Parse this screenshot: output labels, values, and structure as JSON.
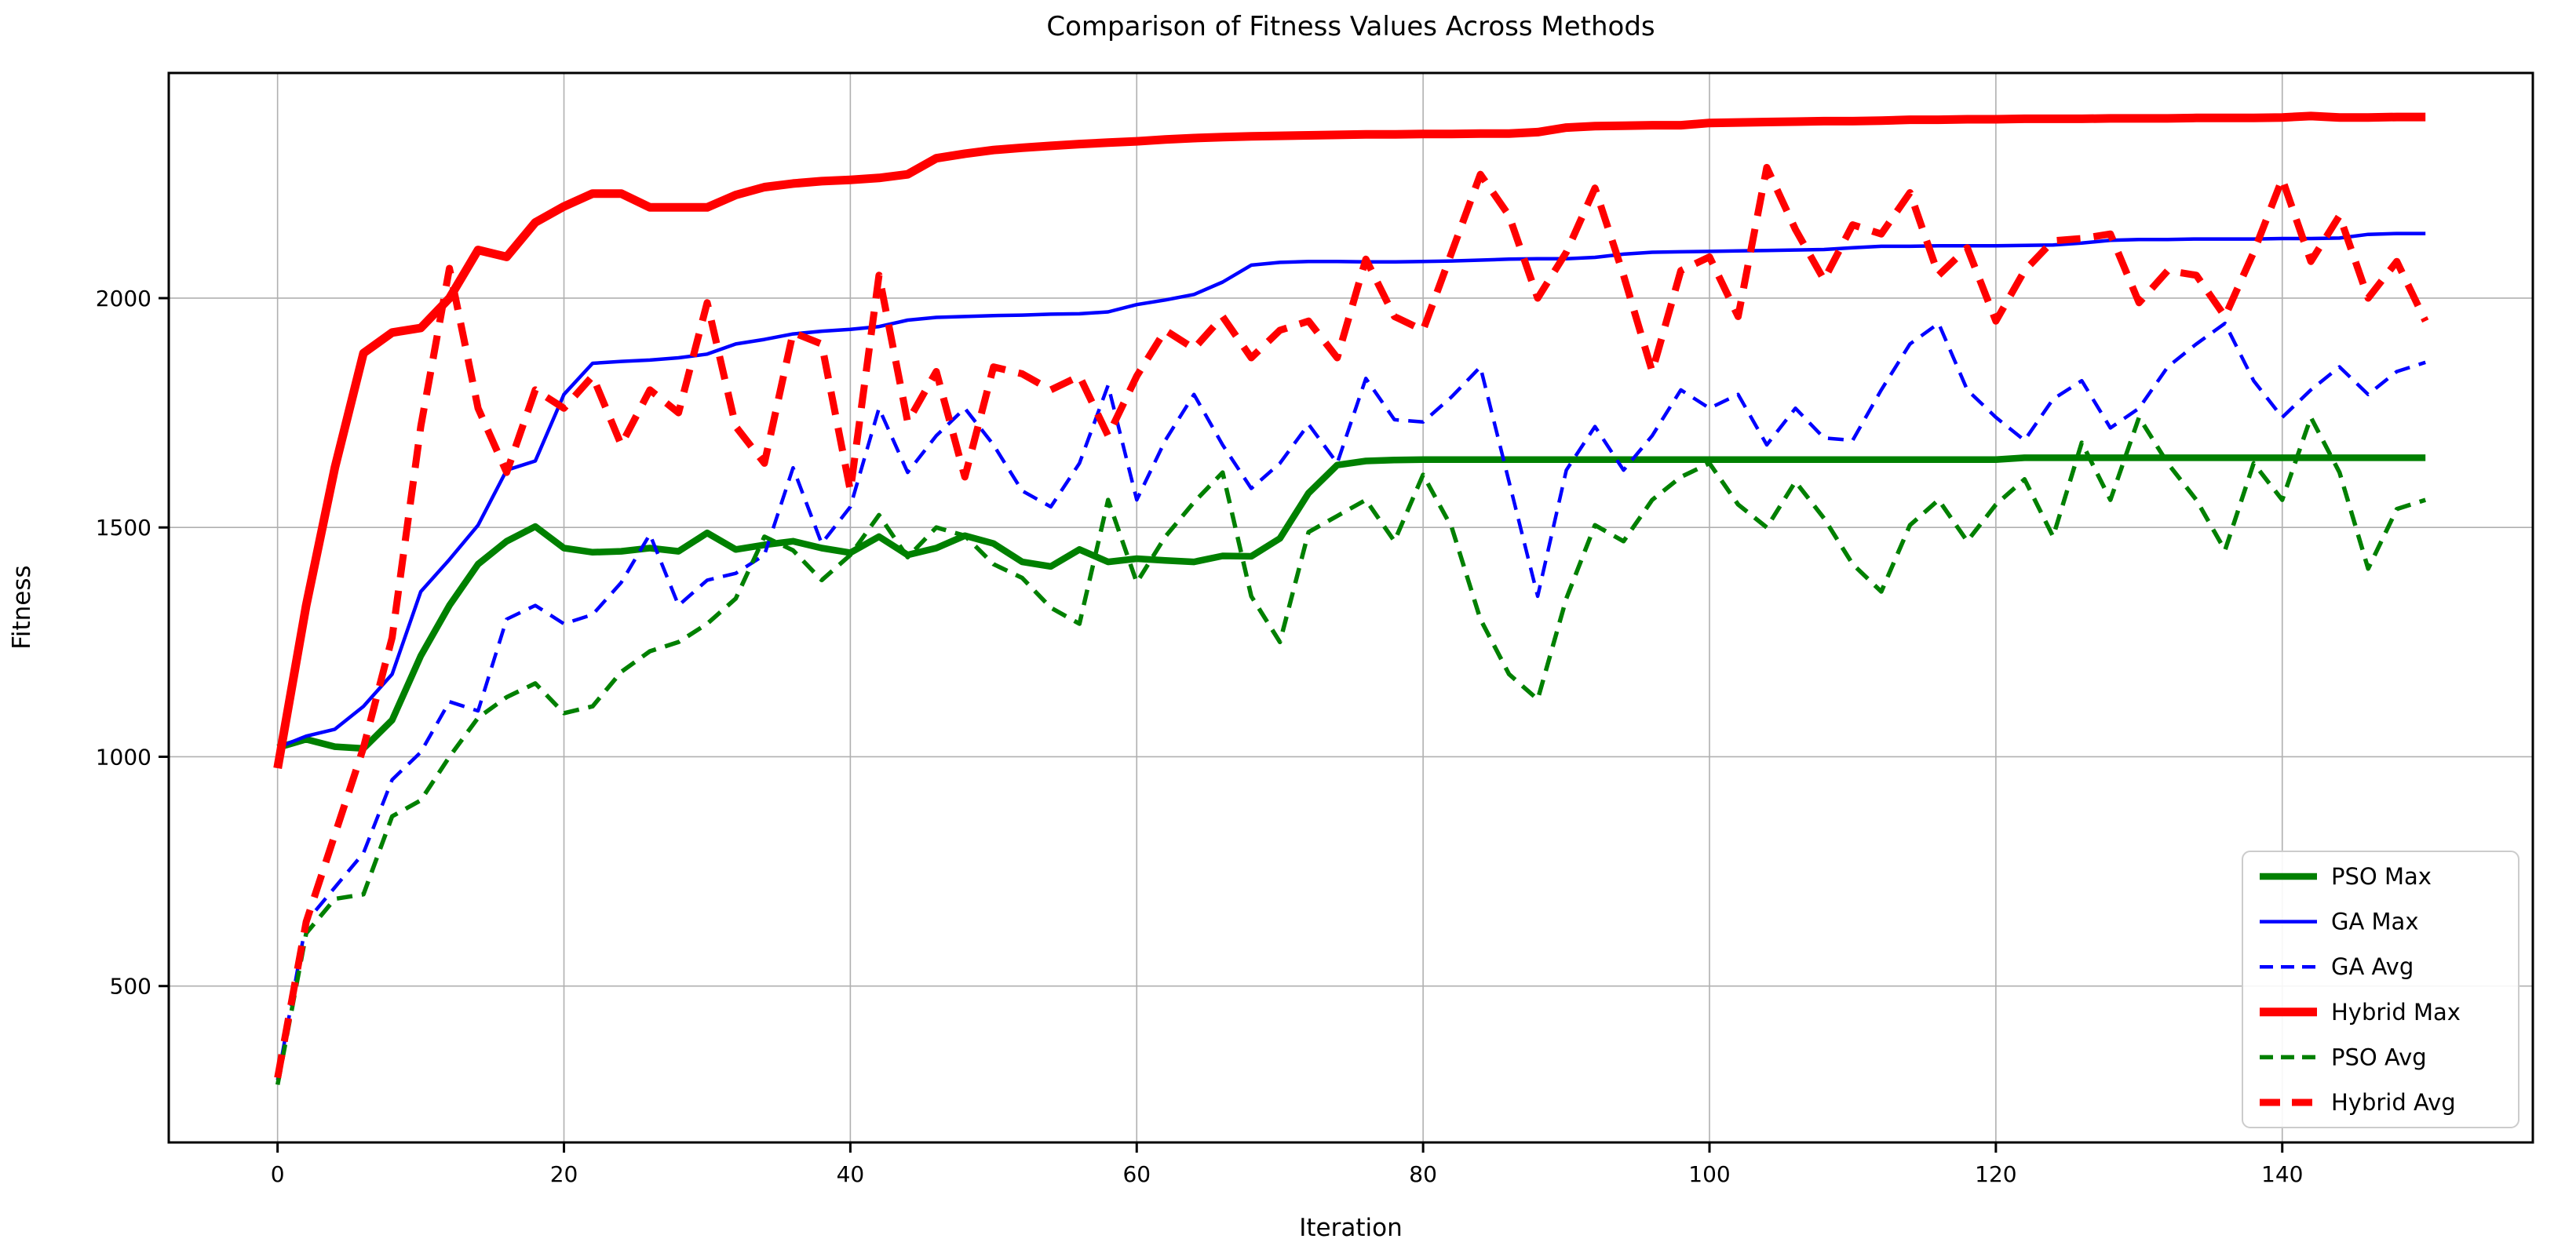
{
  "title": "Comparison of Fitness Values Across Methods",
  "axes": {
    "xlabel": "Iteration",
    "ylabel": "Fitness",
    "x_ticks": [
      0,
      20,
      40,
      60,
      80,
      100,
      120,
      140
    ],
    "y_ticks": [
      500,
      1000,
      1500,
      2000
    ],
    "xlim": [
      -7.6,
      157.5
    ],
    "ylim": [
      159,
      2491
    ],
    "grid": true,
    "grid_color": "#b0b0b0",
    "spine_color": "#000000",
    "background": "#ffffff"
  },
  "legend": {
    "position": "lower right",
    "border_color": "#cccccc",
    "entries": [
      "PSO Max",
      "GA Max",
      "GA Avg",
      "Hybrid Max",
      "PSO Avg",
      "Hybrid Avg"
    ]
  },
  "chart_data": {
    "type": "line",
    "title": "Comparison of Fitness Values Across Methods",
    "xlabel": "Iteration",
    "ylabel": "Fitness",
    "x": [
      0,
      2,
      4,
      6,
      8,
      10,
      12,
      14,
      16,
      18,
      20,
      22,
      24,
      26,
      28,
      30,
      32,
      34,
      36,
      38,
      40,
      42,
      44,
      46,
      48,
      50,
      52,
      54,
      56,
      58,
      60,
      62,
      64,
      66,
      68,
      70,
      72,
      74,
      76,
      78,
      80,
      82,
      84,
      86,
      88,
      90,
      92,
      94,
      96,
      98,
      100,
      102,
      104,
      106,
      108,
      110,
      112,
      114,
      116,
      118,
      120,
      122,
      124,
      126,
      128,
      130,
      132,
      134,
      136,
      138,
      140,
      142,
      144,
      146,
      148,
      150
    ],
    "series": [
      {
        "name": "PSO Max",
        "color": "#008000",
        "style": "solid",
        "width": 8.5,
        "values": [
          1020,
          1038,
          1022,
          1018,
          1080,
          1220,
          1330,
          1420,
          1470,
          1502,
          1455,
          1446,
          1448,
          1455,
          1448,
          1488,
          1452,
          1462,
          1470,
          1455,
          1445,
          1480,
          1440,
          1455,
          1482,
          1465,
          1425,
          1415,
          1452,
          1425,
          1432,
          1428,
          1425,
          1438,
          1437,
          1476,
          1575,
          1636,
          1645,
          1647,
          1648,
          1648,
          1648,
          1648,
          1648,
          1648,
          1648,
          1648,
          1648,
          1648,
          1648,
          1648,
          1648,
          1648,
          1648,
          1648,
          1648,
          1648,
          1648,
          1648,
          1648,
          1652,
          1652,
          1652,
          1652,
          1652,
          1652,
          1652,
          1652,
          1652,
          1652,
          1652,
          1652,
          1652,
          1652,
          1652
        ]
      },
      {
        "name": "GA Max",
        "color": "#0000ff",
        "style": "solid",
        "width": 4.5,
        "values": [
          1020,
          1045,
          1060,
          1110,
          1180,
          1360,
          1430,
          1505,
          1625,
          1645,
          1790,
          1858,
          1862,
          1865,
          1870,
          1878,
          1900,
          1910,
          1922,
          1928,
          1932,
          1938,
          1952,
          1958,
          1960,
          1962,
          1963,
          1965,
          1966,
          1970,
          1986,
          1996,
          2008,
          2035,
          2072,
          2078,
          2080,
          2080,
          2079,
          2079,
          2080,
          2081,
          2083,
          2085,
          2086,
          2086,
          2089,
          2096,
          2100,
          2101,
          2102,
          2103,
          2104,
          2105,
          2106,
          2110,
          2113,
          2113,
          2114,
          2114,
          2114,
          2115,
          2116,
          2120,
          2126,
          2128,
          2128,
          2129,
          2129,
          2129,
          2130,
          2130,
          2131,
          2139,
          2141,
          2141
        ]
      },
      {
        "name": "GA Avg",
        "color": "#0000ff",
        "style": "dashed",
        "width": 4.5,
        "values": [
          295,
          640,
          715,
          790,
          950,
          1010,
          1120,
          1100,
          1300,
          1330,
          1290,
          1310,
          1380,
          1485,
          1330,
          1385,
          1400,
          1440,
          1630,
          1465,
          1545,
          1760,
          1620,
          1700,
          1760,
          1680,
          1580,
          1545,
          1640,
          1810,
          1560,
          1690,
          1790,
          1680,
          1585,
          1640,
          1725,
          1640,
          1825,
          1735,
          1730,
          1785,
          1850,
          1600,
          1350,
          1625,
          1720,
          1625,
          1700,
          1800,
          1760,
          1790,
          1680,
          1760,
          1695,
          1690,
          1800,
          1900,
          1945,
          1800,
          1740,
          1690,
          1780,
          1820,
          1717,
          1760,
          1850,
          1900,
          1945,
          1820,
          1740,
          1800,
          1850,
          1790,
          1840,
          1860
        ]
      },
      {
        "name": "Hybrid Max",
        "color": "#ff0000",
        "style": "solid",
        "width": 11,
        "values": [
          975,
          1330,
          1630,
          1880,
          1925,
          1935,
          2000,
          2105,
          2090,
          2165,
          2200,
          2228,
          2228,
          2198,
          2198,
          2198,
          2225,
          2242,
          2250,
          2255,
          2258,
          2262,
          2270,
          2305,
          2315,
          2323,
          2328,
          2332,
          2336,
          2339,
          2342,
          2346,
          2349,
          2351,
          2353,
          2354,
          2355,
          2356,
          2357,
          2357,
          2358,
          2358,
          2359,
          2359,
          2362,
          2372,
          2375,
          2376,
          2377,
          2377,
          2382,
          2383,
          2384,
          2385,
          2386,
          2386,
          2387,
          2389,
          2389,
          2390,
          2390,
          2391,
          2391,
          2391,
          2392,
          2392,
          2392,
          2393,
          2393,
          2393,
          2394,
          2397,
          2394,
          2394,
          2395,
          2395
        ]
      },
      {
        "name": "PSO Avg",
        "color": "#008000",
        "style": "dashed",
        "width": 5.5,
        "values": [
          285,
          615,
          690,
          700,
          870,
          905,
          1000,
          1085,
          1130,
          1160,
          1095,
          1110,
          1185,
          1230,
          1250,
          1290,
          1345,
          1480,
          1450,
          1385,
          1440,
          1527,
          1435,
          1500,
          1482,
          1420,
          1390,
          1325,
          1290,
          1560,
          1380,
          1480,
          1555,
          1620,
          1350,
          1250,
          1490,
          1525,
          1560,
          1470,
          1615,
          1500,
          1300,
          1180,
          1125,
          1345,
          1505,
          1470,
          1560,
          1610,
          1640,
          1550,
          1500,
          1600,
          1520,
          1420,
          1360,
          1505,
          1560,
          1470,
          1550,
          1605,
          1480,
          1685,
          1560,
          1740,
          1640,
          1560,
          1450,
          1640,
          1560,
          1740,
          1620,
          1410,
          1540,
          1560
        ]
      },
      {
        "name": "Hybrid Avg",
        "color": "#ff0000",
        "style": "dashed",
        "width": 9,
        "values": [
          300,
          640,
          830,
          1020,
          1260,
          1720,
          2065,
          1760,
          1620,
          1800,
          1760,
          1830,
          1680,
          1800,
          1750,
          1990,
          1720,
          1640,
          1925,
          1900,
          1580,
          2050,
          1730,
          1840,
          1610,
          1850,
          1835,
          1800,
          1830,
          1700,
          1830,
          1930,
          1890,
          1960,
          1870,
          1930,
          1950,
          1870,
          2085,
          1960,
          1930,
          2100,
          2270,
          2180,
          2000,
          2100,
          2240,
          2050,
          1840,
          2060,
          2090,
          1960,
          2285,
          2150,
          2040,
          2160,
          2140,
          2230,
          2050,
          2110,
          1950,
          2060,
          2125,
          2130,
          2140,
          1990,
          2060,
          2050,
          1960,
          2100,
          2260,
          2080,
          2180,
          2000,
          2080,
          1950
        ]
      }
    ],
    "legend_order": [
      "PSO Max",
      "GA Max",
      "GA Avg",
      "Hybrid Max",
      "PSO Avg",
      "Hybrid Avg"
    ]
  }
}
